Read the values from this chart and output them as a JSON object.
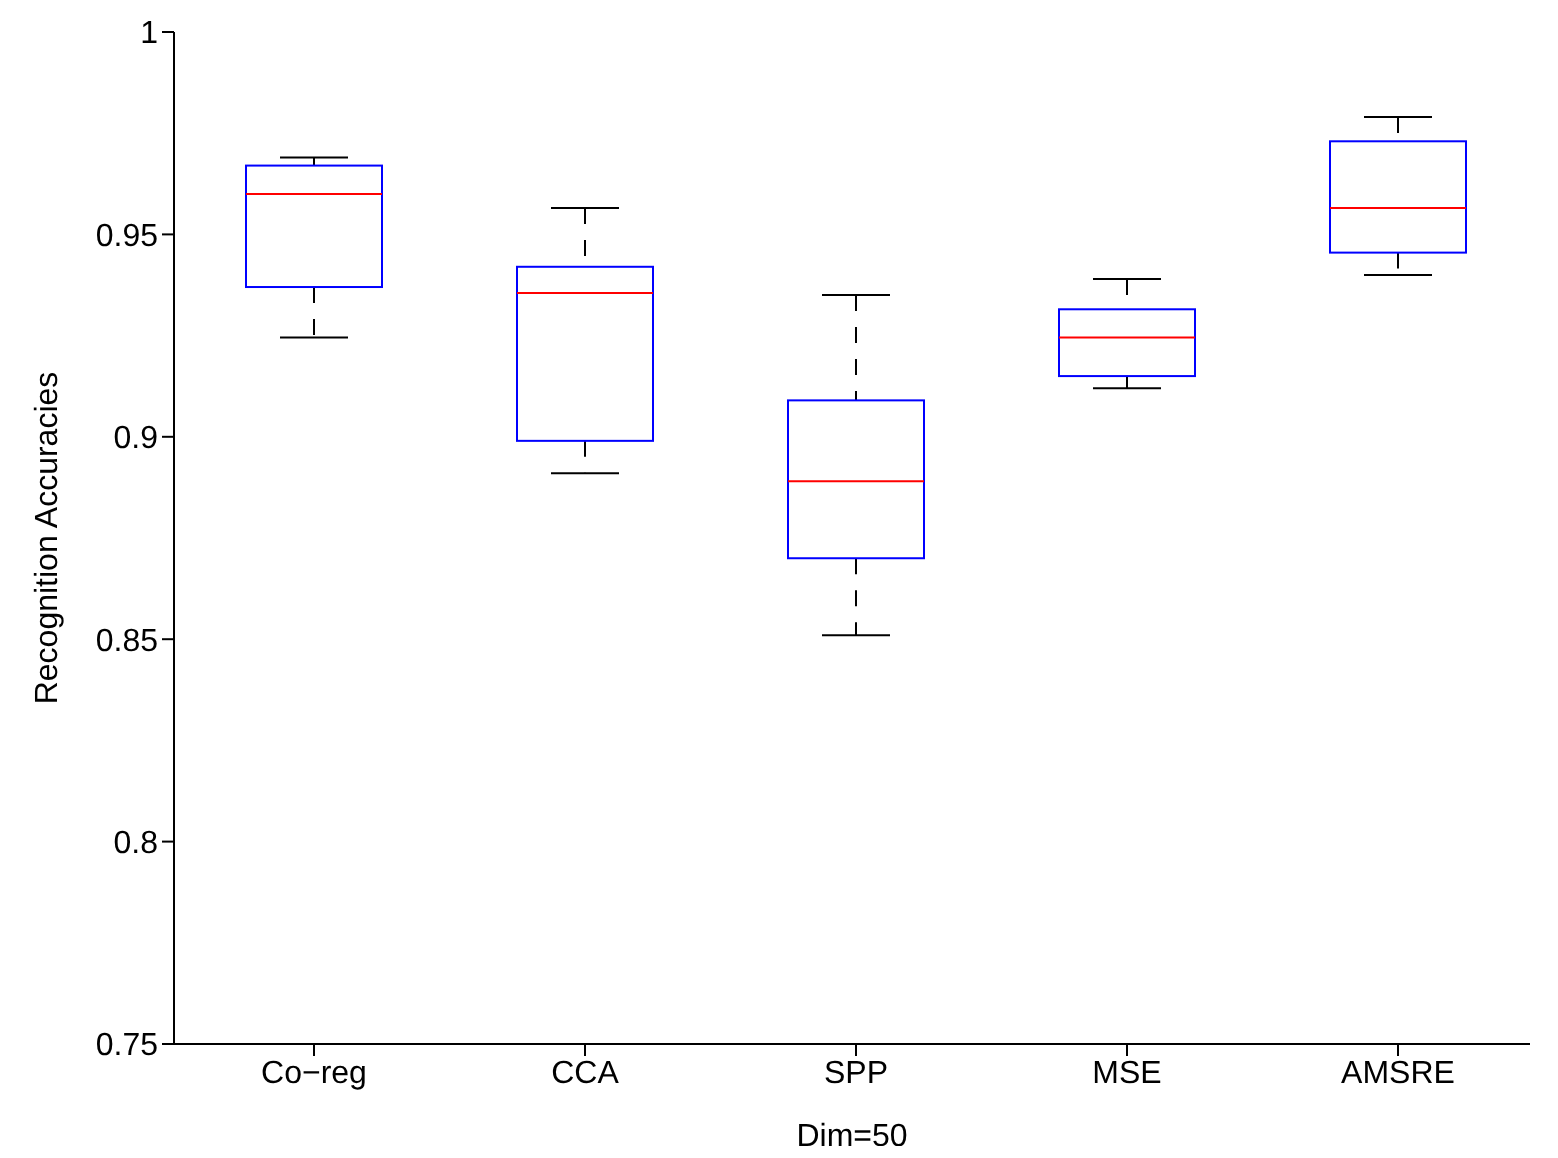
{
  "chart_data": {
    "type": "box",
    "xlabel": "Dim=50",
    "ylabel": "Recognition Accuracies",
    "categories": [
      "Co−reg",
      "CCA",
      "SPP",
      "MSE",
      "AMSRE"
    ],
    "color": "#0000ff",
    "boxes": [
      {
        "low": 0.9245,
        "q1": 0.937,
        "median": 0.96,
        "q3": 0.967,
        "high": 0.969
      },
      {
        "low": 0.891,
        "q1": 0.899,
        "median": 0.9355,
        "q3": 0.942,
        "high": 0.9565
      },
      {
        "low": 0.851,
        "q1": 0.87,
        "median": 0.889,
        "q3": 0.909,
        "high": 0.935
      },
      {
        "low": 0.912,
        "q1": 0.915,
        "median": 0.9245,
        "q3": 0.9315,
        "high": 0.939
      },
      {
        "low": 0.94,
        "q1": 0.9455,
        "median": 0.9565,
        "q3": 0.973,
        "high": 0.979
      }
    ],
    "ylim": [
      0.75,
      1
    ],
    "yticks": [
      0.75,
      0.8,
      0.85,
      0.9,
      0.95,
      1
    ],
    "grid": false
  }
}
